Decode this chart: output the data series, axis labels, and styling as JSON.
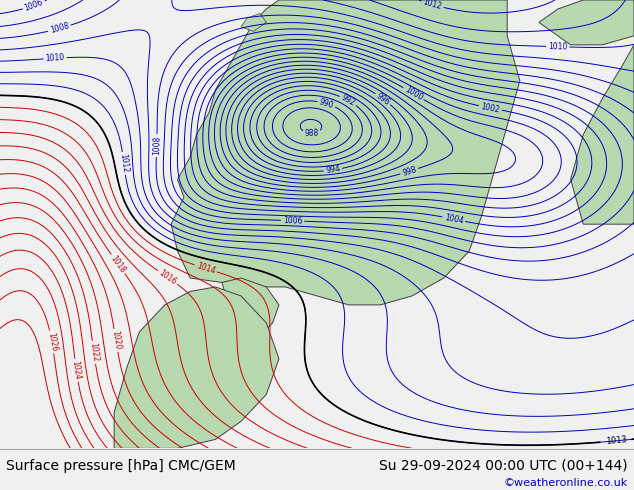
{
  "title_left": "Surface pressure [hPa] CMC/GEM",
  "title_right": "Su 29-09-2024 00:00 UTC (00+144)",
  "credit": "©weatheronline.co.uk",
  "ocean_color": "#dcdce8",
  "land_color": "#b8d8b0",
  "blue_contour_color": "#0000bb",
  "red_contour_color": "#cc0000",
  "black_contour_color": "#000000",
  "bottom_bar_color": "#f0f0f0",
  "title_fontsize": 10,
  "credit_color": "#0000cc",
  "figsize": [
    6.34,
    4.9
  ],
  "dpi": 100
}
